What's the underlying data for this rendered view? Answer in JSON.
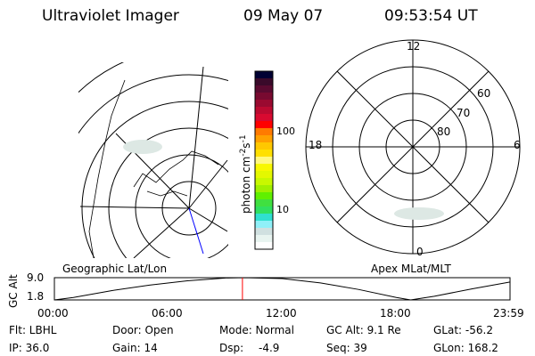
{
  "header": {
    "instrument": "Ultraviolet Imager",
    "date": "09 May 07",
    "time": "09:53:54 UT"
  },
  "colorbar": {
    "label": "photon cm",
    "label_exp1": "-2",
    "label_mid": "s",
    "label_exp2": "-1",
    "ticks": [
      "100",
      "10"
    ],
    "colors": [
      "#000033",
      "#3a0a2a",
      "#5a0a30",
      "#780a30",
      "#9a0a30",
      "#bb0a30",
      "#d80a30",
      "#ff0000",
      "#ff7a00",
      "#ffa000",
      "#ffc800",
      "#ffe000",
      "#fff880",
      "#f8f800",
      "#e4f800",
      "#c8f800",
      "#a0f000",
      "#60f000",
      "#40e040",
      "#30e060",
      "#30e0d0",
      "#90f0f8",
      "#d0e0e0",
      "#e8f4f0",
      "#ffffff"
    ]
  },
  "polar": {
    "mlt_labels": [
      "12",
      "6",
      "0",
      "18"
    ],
    "lat_labels": [
      "60",
      "70",
      "80"
    ]
  },
  "map_labels": {
    "left": "Geographic Lat/Lon",
    "right": "Apex MLat/MLT"
  },
  "chart_data": {
    "type": "line",
    "ylabel": "GC Alt",
    "yticks": [
      "9.0",
      "1.8"
    ],
    "ylim": [
      1.8,
      9.0
    ],
    "xticks": [
      "00:00",
      "06:00",
      "12:00",
      "18:00",
      "23:59"
    ],
    "x": [
      "00:00",
      "01:00",
      "03:00",
      "05:00",
      "07:00",
      "09:00",
      "10:00",
      "12:00",
      "14:00",
      "16:00",
      "18:00",
      "18:45",
      "20:00",
      "22:00",
      "23:59"
    ],
    "values": [
      1.8,
      2.6,
      4.8,
      6.6,
      8.0,
      8.9,
      9.0,
      8.7,
      7.3,
      5.2,
      2.6,
      1.8,
      3.0,
      5.4,
      7.6
    ],
    "current_time_marker": "09:53:54",
    "marker_color": "#ff0000"
  },
  "status": {
    "filter": "Flt: LBHL",
    "ip": "IP: 36.0",
    "door": "Door: Open",
    "gain": "Gain: 14",
    "mode": "Mode: Normal",
    "dsp_label": "Dsp:",
    "dsp_value": "-4.9",
    "gc_alt": "GC Alt: 9.1 Re",
    "seq": "Seq: 39",
    "glat": "GLat: -56.2",
    "glon": "GLon: 168.2"
  }
}
